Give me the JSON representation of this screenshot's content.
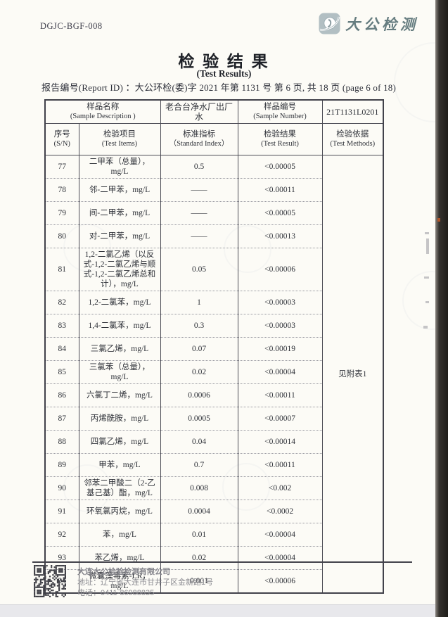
{
  "header": {
    "form_code": "DGJC-BGF-008",
    "logo_text": "大公检测",
    "logo_icon": "planet-swirl-logo-icon",
    "title": "检 验 结 果",
    "subtitle": "(Test Results)",
    "report_line": "报告编号(Report ID) ：大公环检(委)字 2021 年第 1131 号 第 6 页, 共 18 页 (page 6 of 18)"
  },
  "table": {
    "sample": {
      "name_label_zh": "样品名称",
      "name_label_en": "(Sample Description )",
      "name_value": "老合台净水厂出厂水",
      "number_label_zh": "样品编号",
      "number_label_en": "(Sample  Number)",
      "number_value": "21T1131L0201"
    },
    "columns": [
      {
        "zh": "序号",
        "en": "(S/N)"
      },
      {
        "zh": "检验项目",
        "en": "(Test Items)"
      },
      {
        "zh": "标准指标",
        "en": "（Standard Index）"
      },
      {
        "zh": "检验结果",
        "en": "(Test Result)"
      },
      {
        "zh": "检验依据",
        "en": "(Test Methods)"
      }
    ],
    "method_value": "见附表1",
    "rows": [
      {
        "sn": "77",
        "item": "二甲苯（总量），mg/L",
        "standard": "0.5",
        "result": "<0.00005"
      },
      {
        "sn": "78",
        "item": "邻-二甲苯，mg/L",
        "standard": "——",
        "result": "<0.00011"
      },
      {
        "sn": "79",
        "item": "间-二甲苯，mg/L",
        "standard": "——",
        "result": "<0.00005"
      },
      {
        "sn": "80",
        "item": "对-二甲苯，mg/L",
        "standard": "——",
        "result": "<0.00013"
      },
      {
        "sn": "81",
        "item": "1,2-二氯乙烯（以反式-1,2-二氯乙烯与顺式-1,2-二氯乙烯总和计），mg/L",
        "standard": "0.05",
        "result": "<0.00006"
      },
      {
        "sn": "82",
        "item": "1,2-二氯苯，mg/L",
        "standard": "1",
        "result": "<0.00003"
      },
      {
        "sn": "83",
        "item": "1,4-二氯苯，mg/L",
        "standard": "0.3",
        "result": "<0.00003"
      },
      {
        "sn": "84",
        "item": "三氯乙烯，mg/L",
        "standard": "0.07",
        "result": "<0.00019"
      },
      {
        "sn": "85",
        "item": "三氯苯（总量），mg/L",
        "standard": "0.02",
        "result": "<0.00004"
      },
      {
        "sn": "86",
        "item": "六氯丁二烯，mg/L",
        "standard": "0.0006",
        "result": "<0.00011"
      },
      {
        "sn": "87",
        "item": "丙烯酰胺，mg/L",
        "standard": "0.0005",
        "result": "<0.00007"
      },
      {
        "sn": "88",
        "item": "四氯乙烯，mg/L",
        "standard": "0.04",
        "result": "<0.00014"
      },
      {
        "sn": "89",
        "item": "甲苯，mg/L",
        "standard": "0.7",
        "result": "<0.00011"
      },
      {
        "sn": "90",
        "item": "邻苯二甲酸二（2-乙基己基）酯，mg/L",
        "standard": "0.008",
        "result": "<0.002"
      },
      {
        "sn": "91",
        "item": "环氧氯丙烷，mg/L",
        "standard": "0.0004",
        "result": "<0.0002"
      },
      {
        "sn": "92",
        "item": "苯，mg/L",
        "standard": "0.01",
        "result": "<0.00004"
      },
      {
        "sn": "93",
        "item": "苯乙烯，mg/L",
        "standard": "0.02",
        "result": "<0.00004"
      },
      {
        "sn": "94",
        "item": "微囊藻毒素-LR，mg/L",
        "standard": "0.001",
        "result": "<0.00006"
      }
    ]
  },
  "footer": {
    "company": "大连大公检验检测有限公司",
    "address": "地址：辽宁省大连市甘井子区金新路1号",
    "phone": "电话：0411-86988835"
  },
  "colors": {
    "logo_teal": "#667d80",
    "ink": "#2e3138",
    "footer_gray": "#8b8b91",
    "scan_strip": "#1f1d1a"
  }
}
